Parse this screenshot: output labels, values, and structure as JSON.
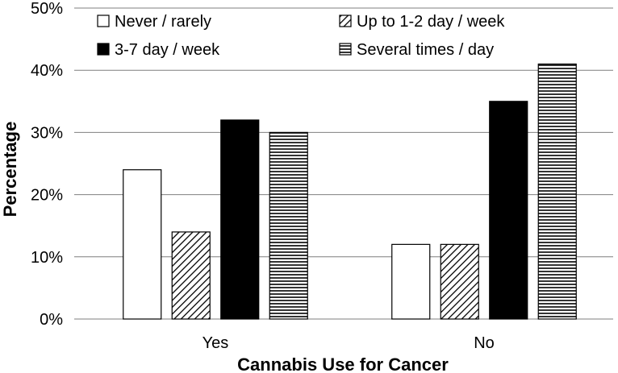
{
  "chart_data": {
    "type": "bar",
    "categories": [
      "Yes",
      "No"
    ],
    "series": [
      {
        "name": "Never / rarely",
        "values": [
          24,
          12
        ],
        "pattern": "white"
      },
      {
        "name": "Up to 1-2 day / week",
        "values": [
          14,
          12
        ],
        "pattern": "diagonal"
      },
      {
        "name": "3-7 day / week",
        "values": [
          32,
          35
        ],
        "pattern": "black"
      },
      {
        "name": "Several times / day",
        "values": [
          30,
          41
        ],
        "pattern": "horizontal"
      }
    ],
    "xlabel": "Cannabis Use for Cancer",
    "ylabel": "Percentage",
    "ylim": [
      0,
      50
    ],
    "yticks": [
      "0%",
      "10%",
      "20%",
      "30%",
      "40%",
      "50%"
    ],
    "grid": true,
    "legend_placement": "top"
  }
}
